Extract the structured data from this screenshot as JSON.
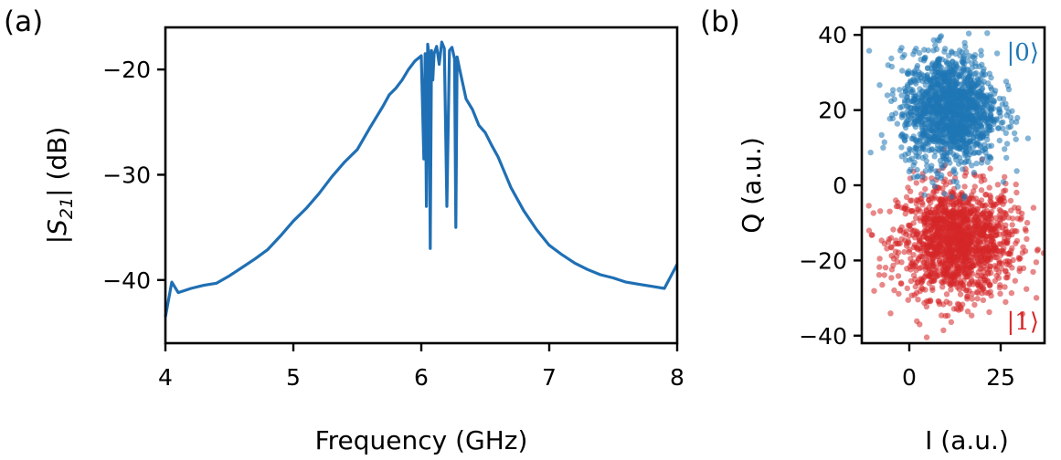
{
  "panels": [
    {
      "label": "(a)"
    },
    {
      "label": "(b)"
    }
  ],
  "chart_data": [
    {
      "type": "line",
      "xlabel": "Frequency (GHz)",
      "ylabel_parts": {
        "pre": "|S",
        "sub": "21",
        "post": "| (dB)"
      },
      "xlim": [
        4,
        8
      ],
      "ylim": [
        -46,
        -16
      ],
      "xticks": [
        4,
        5,
        6,
        7,
        8
      ],
      "xtick_labels": [
        "4",
        "5",
        "6",
        "7",
        "8"
      ],
      "yticks": [
        -20,
        -30,
        -40
      ],
      "ytick_labels": [
        "−20",
        "−30",
        "−40"
      ],
      "color": "#1f6fb4",
      "series": [
        {
          "x": [
            4.0,
            4.05,
            4.1,
            4.2,
            4.3,
            4.4,
            4.5,
            4.6,
            4.7,
            4.8,
            4.9,
            5.0,
            5.1,
            5.2,
            5.3,
            5.4,
            5.5,
            5.6,
            5.7,
            5.75,
            5.8,
            5.85,
            5.9,
            5.95,
            6.0,
            6.02,
            6.03,
            6.04,
            6.05,
            6.06,
            6.07,
            6.08,
            6.09,
            6.1,
            6.12,
            6.14,
            6.16,
            6.18,
            6.2,
            6.22,
            6.24,
            6.26,
            6.27,
            6.28,
            6.3,
            6.35,
            6.4,
            6.45,
            6.5,
            6.55,
            6.6,
            6.7,
            6.8,
            6.9,
            7.0,
            7.1,
            7.2,
            7.3,
            7.4,
            7.5,
            7.6,
            7.7,
            7.8,
            7.9,
            8.0
          ],
          "y": [
            -43.5,
            -40.2,
            -41.2,
            -40.8,
            -40.5,
            -40.3,
            -39.6,
            -38.8,
            -38.0,
            -37.1,
            -35.8,
            -34.4,
            -33.2,
            -31.8,
            -30.2,
            -28.8,
            -27.6,
            -25.5,
            -23.5,
            -22.4,
            -21.8,
            -21.0,
            -20.0,
            -19.2,
            -18.7,
            -28.5,
            -18.5,
            -33.0,
            -17.6,
            -18.6,
            -37.0,
            -18.2,
            -21.0,
            -18.5,
            -17.8,
            -19.5,
            -17.4,
            -18.0,
            -33.0,
            -18.2,
            -17.9,
            -19.0,
            -35.0,
            -18.8,
            -20.0,
            -22.8,
            -23.8,
            -25.3,
            -26.0,
            -27.2,
            -28.3,
            -31.2,
            -33.4,
            -35.2,
            -36.7,
            -37.6,
            -38.4,
            -39.0,
            -39.5,
            -39.8,
            -40.2,
            -40.4,
            -40.6,
            -40.8,
            -38.5
          ]
        }
      ]
    },
    {
      "type": "scatter",
      "xlabel": "I (a.u.)",
      "ylabel": "Q (a.u.)",
      "xlim": [
        -13,
        37
      ],
      "ylim": [
        -42,
        42
      ],
      "xticks": [
        0,
        25
      ],
      "xtick_labels": [
        "0",
        "25"
      ],
      "yticks": [
        40,
        20,
        0,
        -20,
        -40
      ],
      "ytick_labels": [
        "40",
        "20",
        "0",
        "−20",
        "−40"
      ],
      "series": [
        {
          "name": "|0⟩",
          "color": "#1f77b4",
          "center": [
            11,
            20
          ],
          "spread": [
            6.5,
            7.5
          ],
          "points": 1500
        },
        {
          "name": "|1⟩",
          "color": "#d62728",
          "center": [
            13,
            -15
          ],
          "spread": [
            8,
            7.5
          ],
          "points": 1500
        }
      ]
    }
  ]
}
